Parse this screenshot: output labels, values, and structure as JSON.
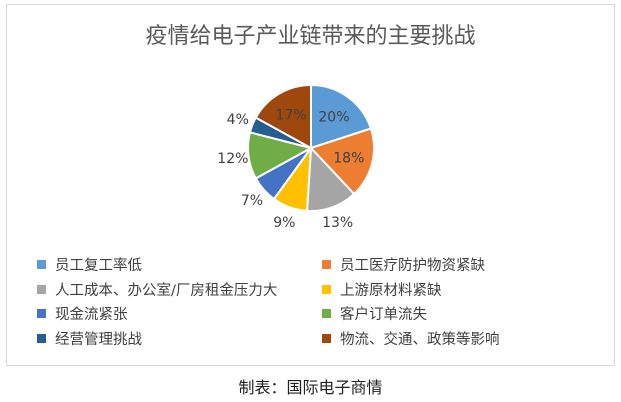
{
  "chart_data": {
    "type": "pie",
    "title": "疫情给电子产业链带来的主要挑战",
    "slices": [
      {
        "label": "员工复工率低",
        "value": 20,
        "data_label": "20%",
        "color": "#5b9bd5"
      },
      {
        "label": "员工医疗防护物资紧缺",
        "value": 18,
        "data_label": "18%",
        "color": "#ed7d31"
      },
      {
        "label": "人工成本、办公室/厂房租金压力大",
        "value": 13,
        "data_label": "13%",
        "color": "#a5a5a5"
      },
      {
        "label": "上游原材料紧缺",
        "value": 9,
        "data_label": "9%",
        "color": "#ffc000"
      },
      {
        "label": "现金流紧张",
        "value": 7,
        "data_label": "7%",
        "color": "#4472c4"
      },
      {
        "label": "客户订单流失",
        "value": 12,
        "data_label": "12%",
        "color": "#70ad47"
      },
      {
        "label": "经营管理挑战",
        "value": 4,
        "data_label": "4%",
        "color": "#255e91"
      },
      {
        "label": "物流、交通、政策等影响",
        "value": 17,
        "data_label": "17%",
        "color": "#9e480e"
      }
    ],
    "legend_placement": "bottom"
  },
  "footer": "制表：国际电子商情",
  "watermark": "国际电子商情"
}
